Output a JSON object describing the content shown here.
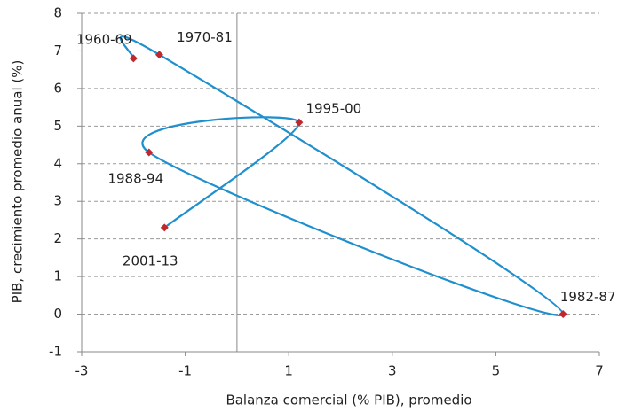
{
  "chart_data": {
    "type": "line",
    "x_label": "Balanza comercial (% PIB), promedio",
    "y_label": "PIB, crecimiento promedio anual (%)",
    "point_labels": [
      "1960-69",
      "1970-81",
      "1982-87",
      "1988-94",
      "1995-00",
      "2001-13"
    ],
    "x": [
      -2.0,
      -1.5,
      6.3,
      -1.7,
      1.2,
      -1.4
    ],
    "values": [
      6.8,
      6.9,
      0.0,
      4.3,
      5.1,
      2.3
    ],
    "color": "#1f8fce",
    "marker_color": "#c0282d",
    "smooth": true,
    "xlim": [
      -3,
      7
    ],
    "xticks": [
      -3,
      -1,
      1,
      3,
      5,
      7
    ],
    "ylim": [
      -1,
      8
    ],
    "yticks": [
      -1,
      0,
      1,
      2,
      3,
      4,
      5,
      6,
      7,
      8
    ],
    "grid": true
  }
}
